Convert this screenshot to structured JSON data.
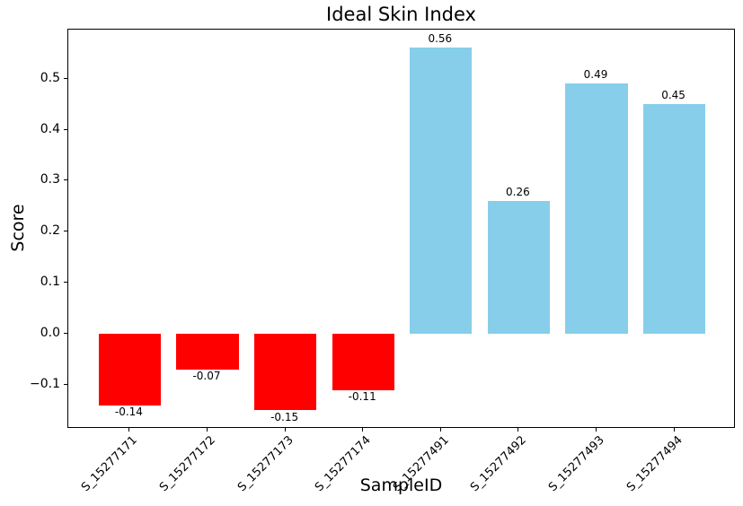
{
  "chart_data": {
    "type": "bar",
    "title": "Ideal Skin Index",
    "xlabel": "SampleID",
    "ylabel": "Score",
    "categories": [
      "S_15277171",
      "S_15277172",
      "S_15277173",
      "S_15277174",
      "S_15277491",
      "S_15277492",
      "S_15277493",
      "S_15277494"
    ],
    "values": [
      -0.14,
      -0.07,
      -0.15,
      -0.11,
      0.56,
      0.26,
      0.49,
      0.45
    ],
    "bar_labels": [
      "-0.14",
      "-0.07",
      "-0.15",
      "-0.11",
      "0.56",
      "0.26",
      "0.49",
      "0.45"
    ],
    "yticks": [
      -0.1,
      0.0,
      0.1,
      0.2,
      0.3,
      0.4,
      0.5
    ],
    "ytick_labels": [
      "−0.1",
      "0.0",
      "0.1",
      "0.2",
      "0.3",
      "0.4",
      "0.5"
    ],
    "ylim": [
      -0.186,
      0.596
    ],
    "bar_width": 0.8,
    "grid": false,
    "legend": null,
    "colors": {
      "positive": "#87ceeb",
      "negative": "#ff0000",
      "axis": "#000000",
      "text": "#000000",
      "background": "#ffffff"
    }
  }
}
